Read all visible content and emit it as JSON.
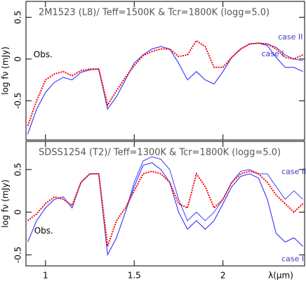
{
  "chart_data": [
    {
      "type": "line",
      "title": "2M1523 (L8)/ Teff=1500K & Tcr=1800K (logg=5.0)",
      "ylabel": "log fν (mJy)",
      "x": [
        0.9,
        0.95,
        1.0,
        1.05,
        1.1,
        1.15,
        1.2,
        1.25,
        1.3,
        1.35,
        1.4,
        1.45,
        1.5,
        1.55,
        1.6,
        1.65,
        1.7,
        1.75,
        1.8,
        1.85,
        1.9,
        1.95,
        2.0,
        2.05,
        2.1,
        2.15,
        2.2,
        2.25,
        2.3,
        2.35,
        2.4,
        2.45
      ],
      "series": [
        {
          "name": "Obs.",
          "color": "#ff0000",
          "values": [
            -0.8,
            -0.5,
            -0.25,
            -0.18,
            -0.15,
            -0.2,
            -0.14,
            -0.12,
            -0.12,
            -0.55,
            -0.38,
            -0.22,
            -0.08,
            0.04,
            0.09,
            0.12,
            0.12,
            0.03,
            0.05,
            0.22,
            0.15,
            -0.1,
            -0.1,
            0.02,
            0.12,
            0.18,
            0.19,
            0.18,
            0.12,
            0.02,
            0.0,
            0.05
          ]
        },
        {
          "name": "case I",
          "color": "#2020ff",
          "values": [
            -0.9,
            -0.6,
            -0.4,
            -0.28,
            -0.22,
            -0.25,
            -0.16,
            -0.13,
            -0.12,
            -0.6,
            -0.45,
            -0.25,
            -0.05,
            0.05,
            0.12,
            0.15,
            0.12,
            -0.05,
            -0.25,
            -0.15,
            -0.25,
            -0.3,
            -0.15,
            0.02,
            0.12,
            0.18,
            0.19,
            0.16,
            0.02,
            -0.1,
            -0.1,
            -0.15
          ]
        },
        {
          "name": "case II",
          "color": "#4040ff",
          "values": [
            -0.9,
            -0.6,
            -0.4,
            -0.28,
            -0.22,
            -0.25,
            -0.16,
            -0.13,
            -0.12,
            -0.6,
            -0.45,
            -0.25,
            -0.05,
            0.05,
            0.12,
            0.15,
            0.12,
            -0.05,
            -0.25,
            -0.15,
            -0.25,
            -0.3,
            -0.15,
            0.02,
            0.12,
            0.18,
            0.19,
            0.18,
            0.14,
            0.05,
            0.0,
            -0.02
          ]
        }
      ],
      "xlim": [
        0.89,
        2.46
      ],
      "xticks": [
        1,
        1.5,
        2
      ],
      "ylim": [
        -0.97,
        0.69
      ],
      "yticks": [
        -0.5,
        0,
        0.5
      ]
    },
    {
      "type": "line",
      "title": "SDSS1254 (T2)/ Teff=1300K & Tcr=1800K (logg=5.0)",
      "ylabel": "log fν (mJy)",
      "xlabel": "λ(μm)",
      "x": [
        0.9,
        0.95,
        1.0,
        1.05,
        1.1,
        1.15,
        1.2,
        1.25,
        1.3,
        1.35,
        1.4,
        1.45,
        1.5,
        1.55,
        1.6,
        1.65,
        1.7,
        1.75,
        1.8,
        1.85,
        1.9,
        1.95,
        2.0,
        2.05,
        2.1,
        2.15,
        2.2,
        2.25,
        2.3,
        2.35,
        2.4,
        2.45
      ],
      "series": [
        {
          "name": "Obs.",
          "color": "#ff0000",
          "values": [
            -0.1,
            -0.02,
            0.1,
            0.18,
            0.15,
            0.08,
            0.35,
            0.45,
            0.45,
            -0.4,
            -0.1,
            0.05,
            0.25,
            0.45,
            0.48,
            0.45,
            0.35,
            0.1,
            0.05,
            0.45,
            0.3,
            0.05,
            0.15,
            0.35,
            0.45,
            0.48,
            0.45,
            0.35,
            0.2,
            0.1,
            0.0,
            0.1
          ]
        },
        {
          "name": "case I",
          "color": "#2020ff",
          "values": [
            -0.35,
            -0.1,
            0.05,
            0.15,
            0.18,
            0.05,
            0.35,
            0.45,
            0.45,
            -0.5,
            -0.3,
            0.0,
            0.3,
            0.55,
            0.58,
            0.5,
            0.35,
            0.0,
            -0.2,
            -0.1,
            -0.2,
            -0.1,
            0.1,
            0.3,
            0.42,
            0.45,
            0.4,
            0.15,
            -0.25,
            -0.35,
            -0.3,
            -0.4
          ]
        },
        {
          "name": "case II",
          "color": "#4040ff",
          "values": [
            -0.35,
            -0.1,
            0.05,
            0.15,
            0.18,
            0.05,
            0.35,
            0.45,
            0.45,
            -0.5,
            -0.3,
            0.0,
            0.35,
            0.6,
            0.65,
            0.62,
            0.5,
            0.15,
            -0.1,
            0.0,
            -0.1,
            0.0,
            0.15,
            0.35,
            0.48,
            0.5,
            0.45,
            0.45,
            0.3,
            0.15,
            0.25,
            0.15
          ]
        }
      ],
      "xlim": [
        0.89,
        2.46
      ],
      "xticks": [
        1,
        1.5,
        2
      ],
      "ylim": [
        -0.63,
        0.83
      ],
      "yticks": [
        -0.5,
        0,
        0.5
      ]
    }
  ]
}
